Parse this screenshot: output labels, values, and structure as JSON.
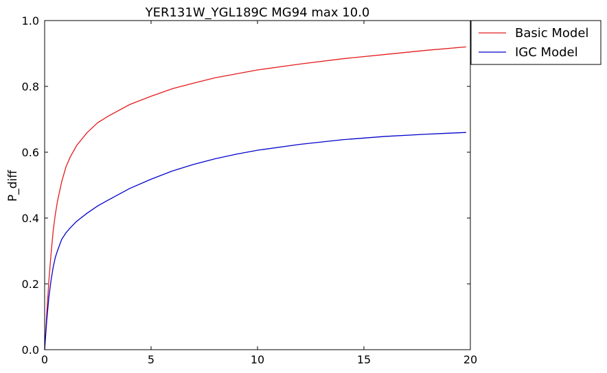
{
  "chart_data": {
    "type": "line",
    "title": "YER131W_YGL189C MG94 max 10.0",
    "xlabel": "",
    "ylabel": "P_diff",
    "xlim": [
      0,
      20
    ],
    "ylim": [
      0,
      1.0
    ],
    "xticks": [
      0,
      5,
      10,
      15,
      20
    ],
    "xtick_labels": [
      "0",
      "5",
      "10",
      "15",
      "20"
    ],
    "yticks": [
      0,
      0.2,
      0.4,
      0.6,
      0.8,
      1.0
    ],
    "ytick_labels": [
      "0.0",
      "0.2",
      "0.4",
      "0.6",
      "0.8",
      "1.0"
    ],
    "grid": false,
    "legend_position": "outside-top-right",
    "series": [
      {
        "name": "Basic Model",
        "color": "#e41a1c",
        "x": [
          0,
          0.1,
          0.2,
          0.3,
          0.4,
          0.5,
          0.6,
          0.8,
          1.0,
          1.2,
          1.5,
          2.0,
          2.5,
          3.0,
          4.0,
          5.0,
          6.0,
          7.0,
          8.0,
          9.0,
          10.0,
          12.0,
          14.0,
          16.0,
          18.0,
          19.8
        ],
        "y": [
          0,
          0.11,
          0.21,
          0.29,
          0.36,
          0.41,
          0.45,
          0.51,
          0.555,
          0.585,
          0.62,
          0.66,
          0.69,
          0.71,
          0.745,
          0.77,
          0.793,
          0.81,
          0.826,
          0.838,
          0.85,
          0.868,
          0.884,
          0.897,
          0.91,
          0.92
        ]
      },
      {
        "name": "IGC Model",
        "color": "#0000cc",
        "x": [
          0,
          0.1,
          0.2,
          0.3,
          0.4,
          0.5,
          0.6,
          0.8,
          1.0,
          1.2,
          1.5,
          2.0,
          2.5,
          3.0,
          4.0,
          5.0,
          6.0,
          7.0,
          8.0,
          9.0,
          10.0,
          12.0,
          14.0,
          16.0,
          18.0,
          19.8
        ],
        "y": [
          0,
          0.09,
          0.16,
          0.21,
          0.25,
          0.28,
          0.3,
          0.335,
          0.355,
          0.37,
          0.39,
          0.415,
          0.437,
          0.455,
          0.49,
          0.518,
          0.543,
          0.563,
          0.58,
          0.594,
          0.606,
          0.624,
          0.638,
          0.648,
          0.655,
          0.66
        ]
      }
    ]
  }
}
